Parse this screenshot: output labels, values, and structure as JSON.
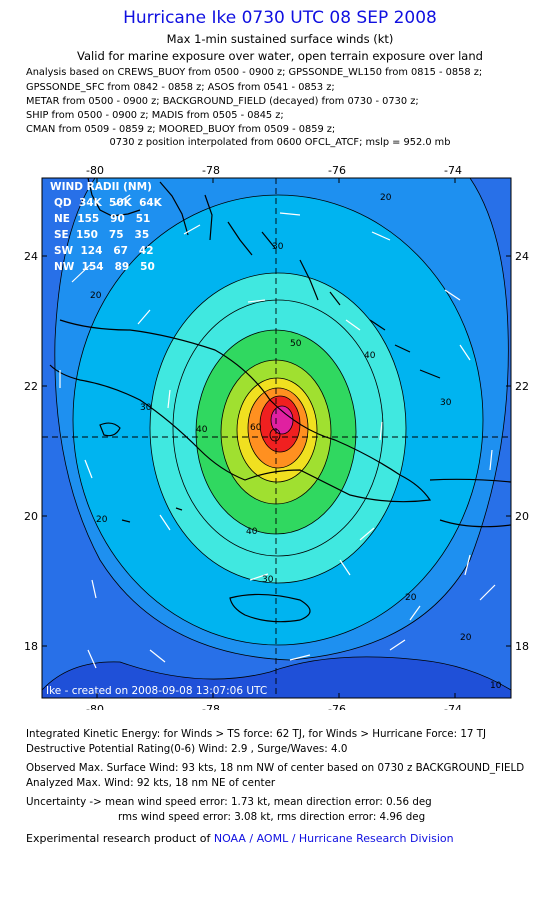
{
  "header": {
    "title": "Hurricane Ike 0730 UTC 08 SEP 2008",
    "subtitle": "Max 1-min sustained surface winds (kt)",
    "valid": "Valid for marine exposure over water, open terrain exposure over land",
    "sources": [
      "Analysis based on  CREWS_BUOY from 0500 - 0900 z;  GPSSONDE_WL150 from 0815 - 0858 z;",
      "GPSSONDE_SFC from 0842 - 0858 z;  ASOS from 0541 - 0853 z;",
      "METAR from 0500 - 0900 z;  BACKGROUND_FIELD (decayed) from 0730 - 0730 z;",
      "SHIP from 0500 - 0900 z;  MADIS from 0505 - 0845 z;",
      "CMAN from 0509 - 0859 z;  MOORED_BUOY from 0509 - 0859 z;"
    ],
    "position_note": "0730 z position interpolated from 0600 OFCL_ATCF; mslp = 952.0 mb"
  },
  "map": {
    "lon_ticks": [
      "-80",
      "-78",
      "-76",
      "-74"
    ],
    "lat_ticks": [
      "24",
      "22",
      "20",
      "18"
    ],
    "credit": "Ike - created on 2008-09-08 13:07:06 UTC",
    "wind_radii": {
      "title": "WIND RADII (NM)",
      "header": "QD  34K  50K  64K",
      "rows": [
        "NE  155   90   51",
        "SE  150   75   35",
        "SW  124   67   42",
        "NW  154   89   50"
      ]
    },
    "contour_labels": [
      "30",
      "50",
      "40",
      "30",
      "40",
      "30",
      "20",
      "20",
      "40",
      "30",
      "20",
      "20",
      "60",
      "20",
      "10"
    ],
    "colors": {
      "background": "#1f50d8",
      "ocean_ring_10": "#2870e8",
      "ring_20": "#1e90f0",
      "ring_30": "#00b4f0",
      "ring_40": "#40e8e0",
      "ring_50": "#30d860",
      "ring_60": "#a0e030",
      "ring_70": "#f0e020",
      "ring_80": "#ff9020",
      "ring_90": "#f02020",
      "core": "#e020a0",
      "title_link": "#1010e0"
    }
  },
  "footer": {
    "ike_line": "Integrated Kinetic Energy:  for Winds > TS force: 62 TJ,  for Winds > Hurricane Force: 17 TJ",
    "dpr_line": "Destructive Potential Rating(0-6)   Wind: 2.9 , Surge/Waves: 4.0",
    "obs_line": "Observed Max. Surface Wind: 93 kts, 18 nm NW of center based on 0730 z BACKGROUND_FIELD",
    "ana_line": "Analyzed Max. Wind: 92 kts, 18 nm NE of center",
    "unc_line1": "Uncertainty -> mean wind speed error: 1.73 kt,   mean direction error: 0.56 deg",
    "unc_line2": "rms wind speed error: 3.08 kt,   rms direction error: 4.96 deg",
    "credit_prefix": "Experimental research product of ",
    "credit_link": "NOAA / AOML / Hurricane Research Division"
  }
}
